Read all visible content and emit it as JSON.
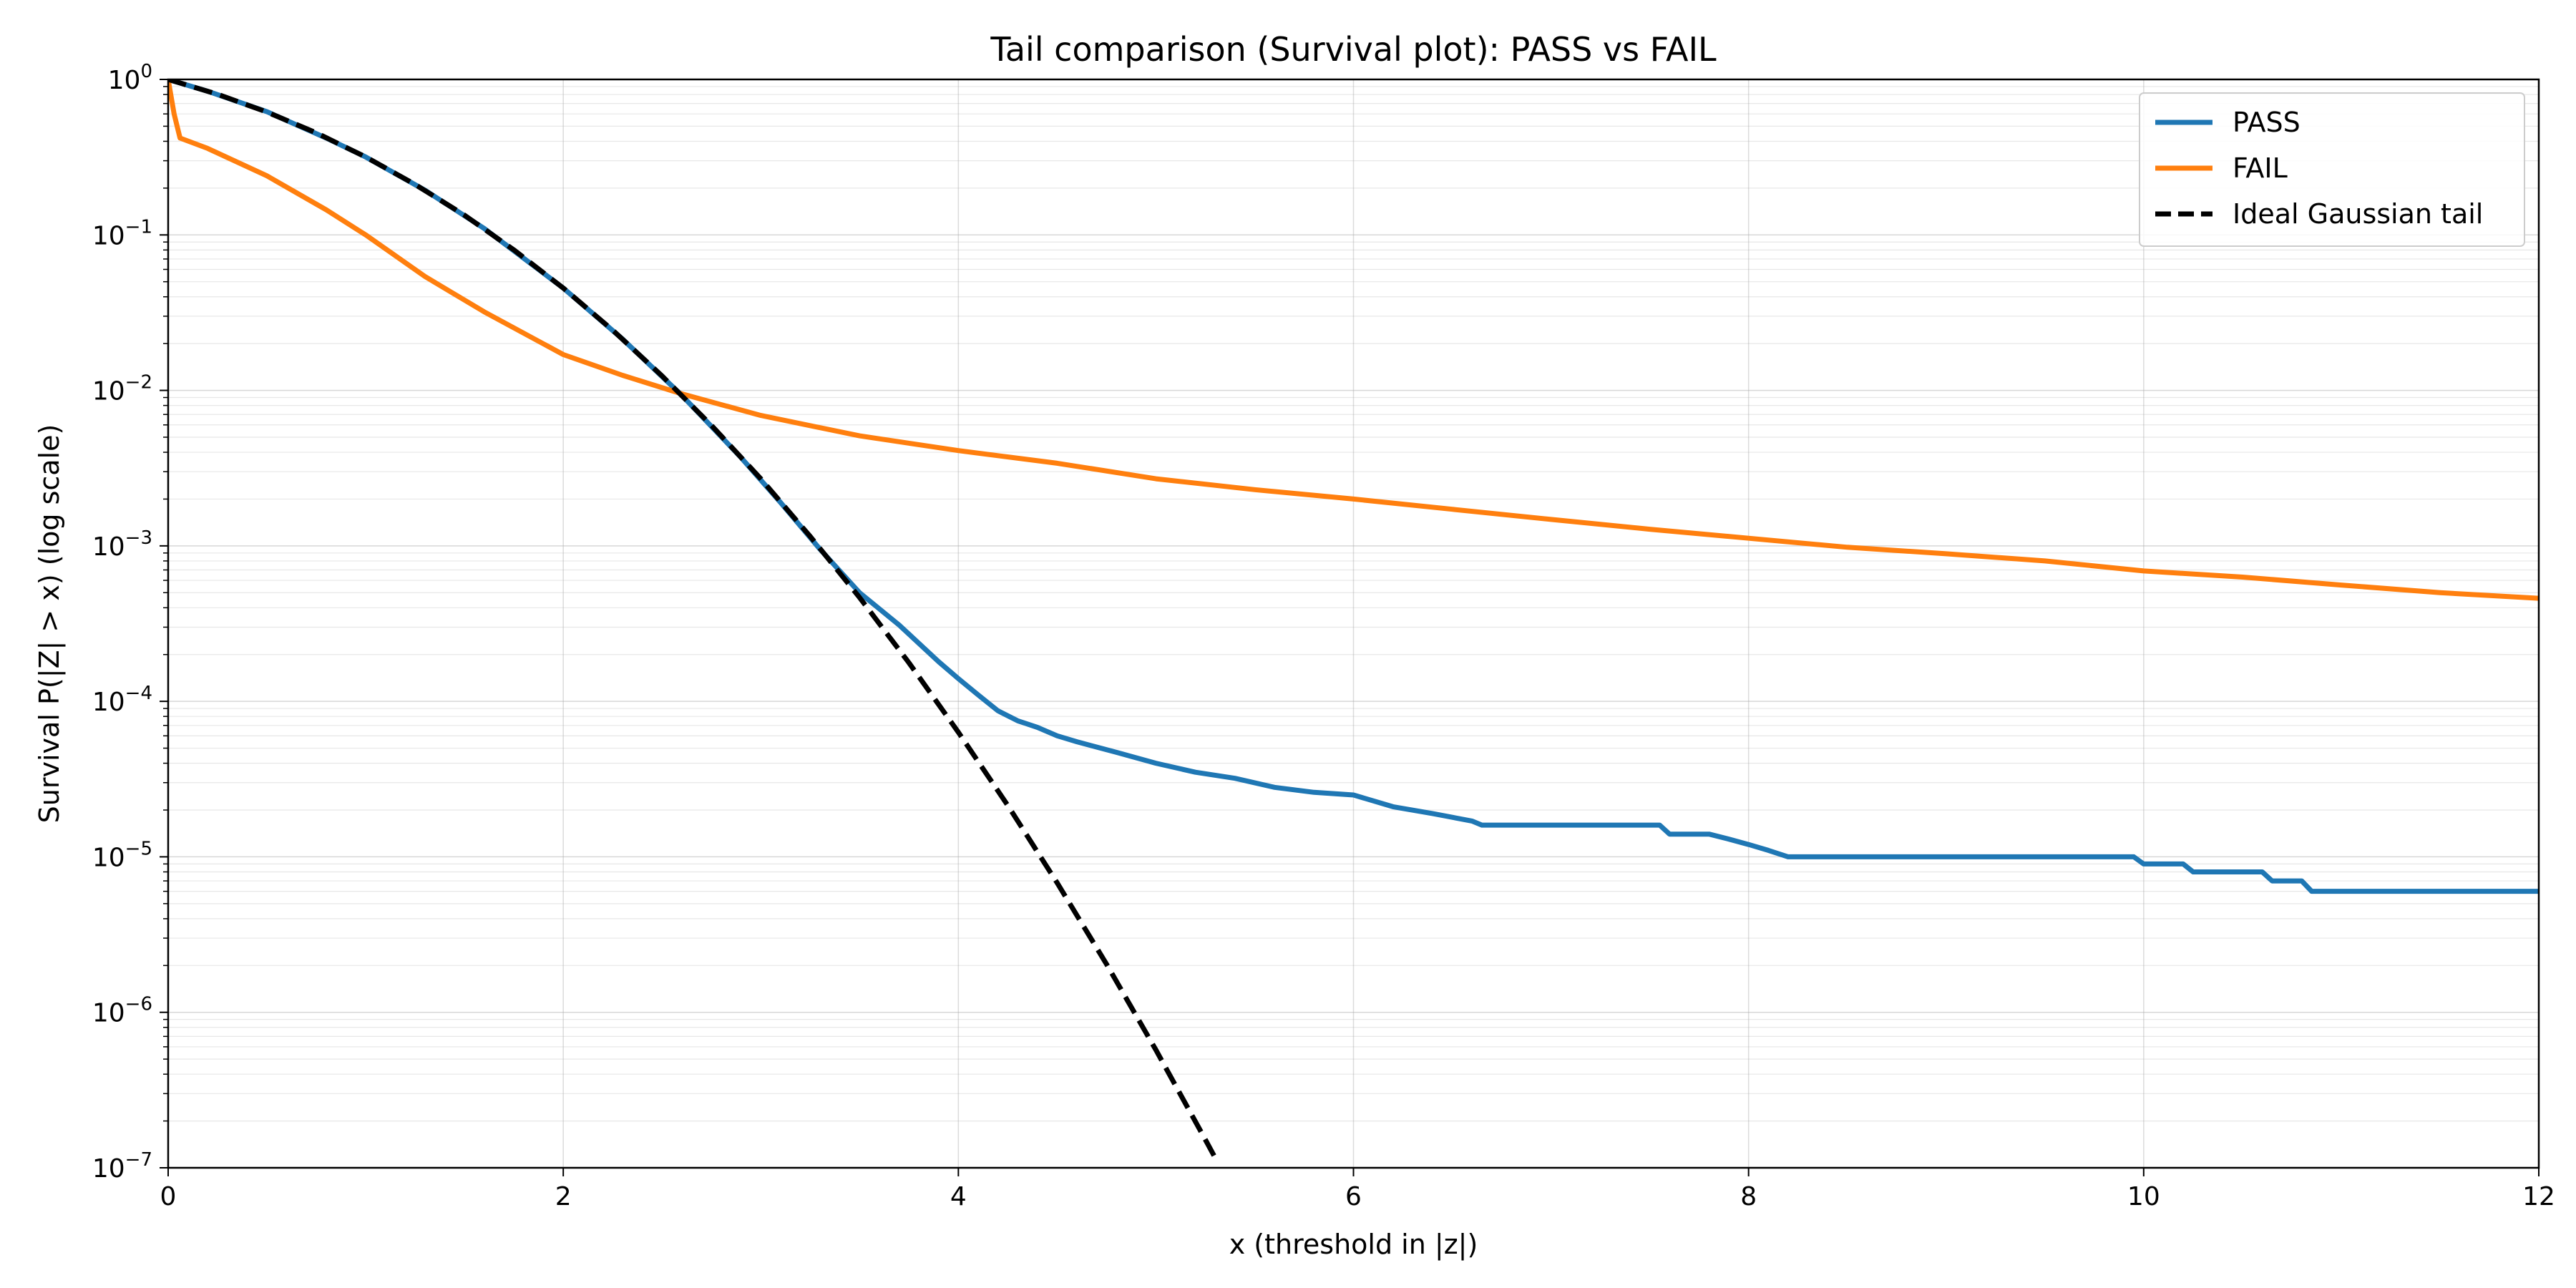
{
  "chart_data": {
    "type": "line",
    "title": "Tail comparison (Survival plot): PASS vs FAIL",
    "xlabel": "x  (threshold in |z|)",
    "ylabel": "Survival P(|Z| > x)  (log scale)",
    "xlim": [
      0,
      12
    ],
    "ylim": [
      1e-07,
      1
    ],
    "yscale": "log",
    "grid": true,
    "legend_position": "top-right",
    "x_ticks": [
      {
        "value": 0,
        "label": "0"
      },
      {
        "value": 2,
        "label": "2"
      },
      {
        "value": 4,
        "label": "4"
      },
      {
        "value": 6,
        "label": "6"
      },
      {
        "value": 8,
        "label": "8"
      },
      {
        "value": 10,
        "label": "10"
      },
      {
        "value": 12,
        "label": "12"
      }
    ],
    "y_ticks": [
      {
        "value": 1,
        "base": "10",
        "exp": "0"
      },
      {
        "value": 0.1,
        "base": "10",
        "exp": "−1"
      },
      {
        "value": 0.01,
        "base": "10",
        "exp": "−2"
      },
      {
        "value": 0.001,
        "base": "10",
        "exp": "−3"
      },
      {
        "value": 0.0001,
        "base": "10",
        "exp": "−4"
      },
      {
        "value": 1e-05,
        "base": "10",
        "exp": "−5"
      },
      {
        "value": 1e-06,
        "base": "10",
        "exp": "−6"
      },
      {
        "value": 1e-07,
        "base": "10",
        "exp": "−7"
      }
    ],
    "series": [
      {
        "name": "PASS",
        "color": "#1f77b4",
        "style": "solid",
        "x": [
          0,
          0.2,
          0.5,
          0.8,
          1.0,
          1.3,
          1.6,
          2.0,
          2.3,
          2.6,
          2.9,
          3.1,
          3.3,
          3.5,
          3.7,
          3.9,
          4.0,
          4.1,
          4.2,
          4.3,
          4.4,
          4.5,
          4.6,
          4.8,
          5.0,
          5.2,
          5.4,
          5.6,
          5.8,
          6.0,
          6.2,
          6.4,
          6.6,
          6.65,
          7.0,
          7.3,
          7.55,
          7.6,
          7.8,
          7.9,
          8.0,
          8.1,
          8.2,
          8.5,
          9.0,
          9.5,
          9.95,
          10.0,
          10.2,
          10.25,
          10.6,
          10.65,
          10.8,
          10.85,
          12.0
        ],
        "y": [
          1.0,
          0.84,
          0.62,
          0.42,
          0.317,
          0.194,
          0.11,
          0.0455,
          0.0214,
          0.0093,
          0.0037,
          0.0019,
          0.00095,
          0.0005,
          0.00031,
          0.00018,
          0.00014,
          0.00011,
          8.7e-05,
          7.5e-05,
          6.8e-05,
          6e-05,
          5.5e-05,
          4.7e-05,
          4e-05,
          3.5e-05,
          3.2e-05,
          2.8e-05,
          2.6e-05,
          2.5e-05,
          2.1e-05,
          1.9e-05,
          1.7e-05,
          1.6e-05,
          1.6e-05,
          1.6e-05,
          1.6e-05,
          1.4e-05,
          1.4e-05,
          1.3e-05,
          1.2e-05,
          1.1e-05,
          1e-05,
          1e-05,
          1e-05,
          1e-05,
          1e-05,
          9e-06,
          9e-06,
          8e-06,
          8e-06,
          7e-06,
          7e-06,
          6e-06,
          6e-06
        ]
      },
      {
        "name": "FAIL",
        "color": "#ff7f0e",
        "style": "solid",
        "x": [
          0,
          0.03,
          0.06,
          0.2,
          0.5,
          0.8,
          1.0,
          1.3,
          1.6,
          2.0,
          2.3,
          2.6,
          3.0,
          3.5,
          4.0,
          4.5,
          5.0,
          5.5,
          6.0,
          6.5,
          7.0,
          7.5,
          8.0,
          8.5,
          9.0,
          9.5,
          10.0,
          10.5,
          11.0,
          11.5,
          12.0
        ],
        "y": [
          1.0,
          0.6,
          0.42,
          0.36,
          0.24,
          0.145,
          0.1,
          0.054,
          0.032,
          0.017,
          0.0125,
          0.0095,
          0.0069,
          0.0051,
          0.0041,
          0.0034,
          0.0027,
          0.0023,
          0.002,
          0.00172,
          0.00148,
          0.00128,
          0.00112,
          0.00098,
          0.00089,
          0.0008,
          0.00069,
          0.00063,
          0.00056,
          0.0005,
          0.00046
        ]
      },
      {
        "name": "Ideal Gaussian tail",
        "color": "#000000",
        "style": "dashed",
        "x": [
          0,
          0.25,
          0.5,
          0.75,
          1.0,
          1.25,
          1.5,
          1.75,
          2.0,
          2.25,
          2.5,
          2.75,
          3.0,
          3.25,
          3.5,
          3.75,
          4.0,
          4.25,
          4.5,
          4.75,
          5.0,
          5.25,
          5.3
        ],
        "y": [
          1.0,
          0.803,
          0.617,
          0.453,
          0.317,
          0.211,
          0.134,
          0.0801,
          0.0455,
          0.0244,
          0.0124,
          0.00596,
          0.0027,
          0.00115,
          0.000465,
          0.000177,
          6.33e-05,
          2.14e-05,
          6.8e-06,
          2.04e-06,
          5.73e-07,
          1.52e-07,
          1.16e-07
        ]
      }
    ]
  }
}
